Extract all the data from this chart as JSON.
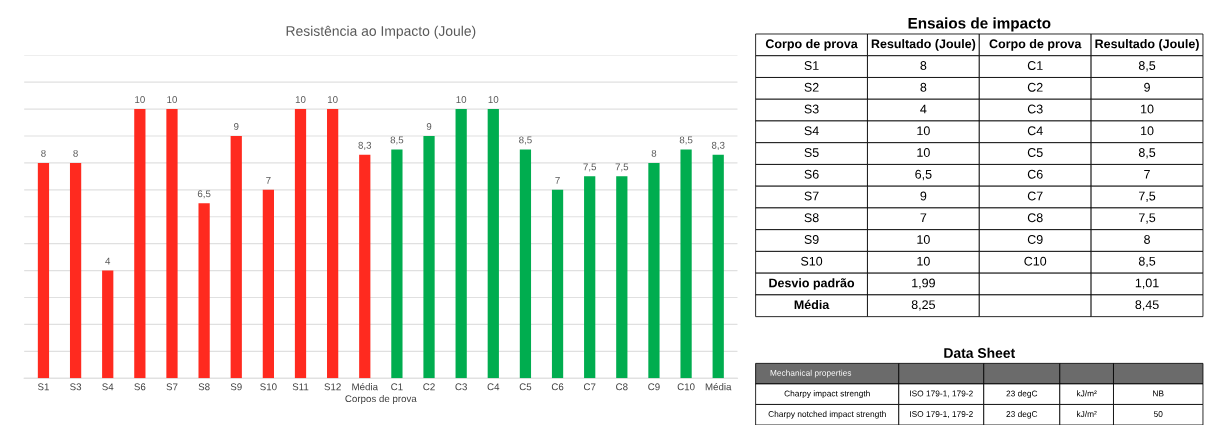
{
  "chart_data": [
    {
      "type": "bar",
      "title": "Resistência ao Impacto (Joule)",
      "xlabel": "Corpos de prova",
      "categories": [
        "S1",
        "S3",
        "S4",
        "S6",
        "S7",
        "S8",
        "S9",
        "S10",
        "S11",
        "S12",
        "Média",
        "C1",
        "C2",
        "C3",
        "C4",
        "C5",
        "C6",
        "C7",
        "C8",
        "C9",
        "C10",
        "Média"
      ],
      "values": [
        8,
        8,
        4,
        10,
        10,
        6.5,
        9,
        7,
        10,
        10,
        8.3,
        8.5,
        9,
        10,
        10,
        8.5,
        7,
        7.5,
        7.5,
        8,
        8.5,
        8.3
      ],
      "value_labels": [
        "8",
        "8",
        "4",
        "10",
        "10",
        "6,5",
        "9",
        "7",
        "10",
        "10",
        "8,3",
        "8,5",
        "9",
        "10",
        "10",
        "8,5",
        "7",
        "7,5",
        "7,5",
        "8",
        "8,5",
        "8,3"
      ],
      "colors": [
        "#ff2a1f",
        "#ff2a1f",
        "#ff2a1f",
        "#ff2a1f",
        "#ff2a1f",
        "#ff2a1f",
        "#ff2a1f",
        "#ff2a1f",
        "#ff2a1f",
        "#ff2a1f",
        "#ff2a1f",
        "#00ad4f",
        "#00ad4f",
        "#00ad4f",
        "#00ad4f",
        "#00ad4f",
        "#00ad4f",
        "#00ad4f",
        "#00ad4f",
        "#00ad4f",
        "#00ad4f",
        "#00ad4f"
      ],
      "ylim": [
        0,
        12
      ],
      "yticks": [
        {
          "value": 0,
          "label": null
        },
        {
          "value": 1,
          "label": null
        },
        {
          "value": 2,
          "label": null
        },
        {
          "value": 3,
          "label": null
        },
        {
          "value": 4,
          "label": null
        },
        {
          "value": 5,
          "label": null
        },
        {
          "value": 6,
          "label": null
        },
        {
          "value": 7,
          "label": null
        },
        {
          "value": 8,
          "label": null
        },
        {
          "value": 9,
          "label": null
        },
        {
          "value": 10,
          "label": null
        },
        {
          "value": 11,
          "label": null
        },
        {
          "value": 12,
          "label": null
        }
      ],
      "grid": "y",
      "tick_labels": "x"
    },
    {
      "type": "other",
      "title": "Ensaios de impacto",
      "categories": [
        "Corpo de prova",
        "Resultado (Joule)",
        "Corpo de prova",
        "Resultado (Joule)"
      ],
      "cell_labels": [
        [
          "S1",
          "8",
          "C1",
          "8,5"
        ],
        [
          "S2",
          "8",
          "C2",
          "9"
        ],
        [
          "S3",
          "4",
          "C3",
          "10"
        ],
        [
          "S4",
          "10",
          "C4",
          "10"
        ],
        [
          "S5",
          "10",
          "C5",
          "8,5"
        ],
        [
          "S6",
          "6,5",
          "C6",
          "7"
        ],
        [
          "S7",
          "9",
          "C7",
          "7,5"
        ],
        [
          "S8",
          "7",
          "C8",
          "7,5"
        ],
        [
          "S9",
          "10",
          "C9",
          "8"
        ],
        [
          "S10",
          "10",
          "C10",
          "8,5"
        ],
        [
          "Desvio padrão",
          "1,99",
          null,
          "1,01"
        ],
        [
          "Média",
          "8,25",
          null,
          "8,45"
        ]
      ]
    },
    {
      "type": "other",
      "title": "Data Sheet",
      "categories": [
        "Mechanical properties",
        null,
        null,
        null,
        null
      ],
      "cell_labels": [
        [
          "Charpy impact strength",
          "ISO 179-1, 179-2",
          "23 degC",
          "kJ/m²",
          "NB"
        ],
        [
          "Charpy notched impact strength",
          "ISO 179-1, 179-2",
          "23 degC",
          "kJ/m²",
          "50"
        ]
      ]
    }
  ]
}
